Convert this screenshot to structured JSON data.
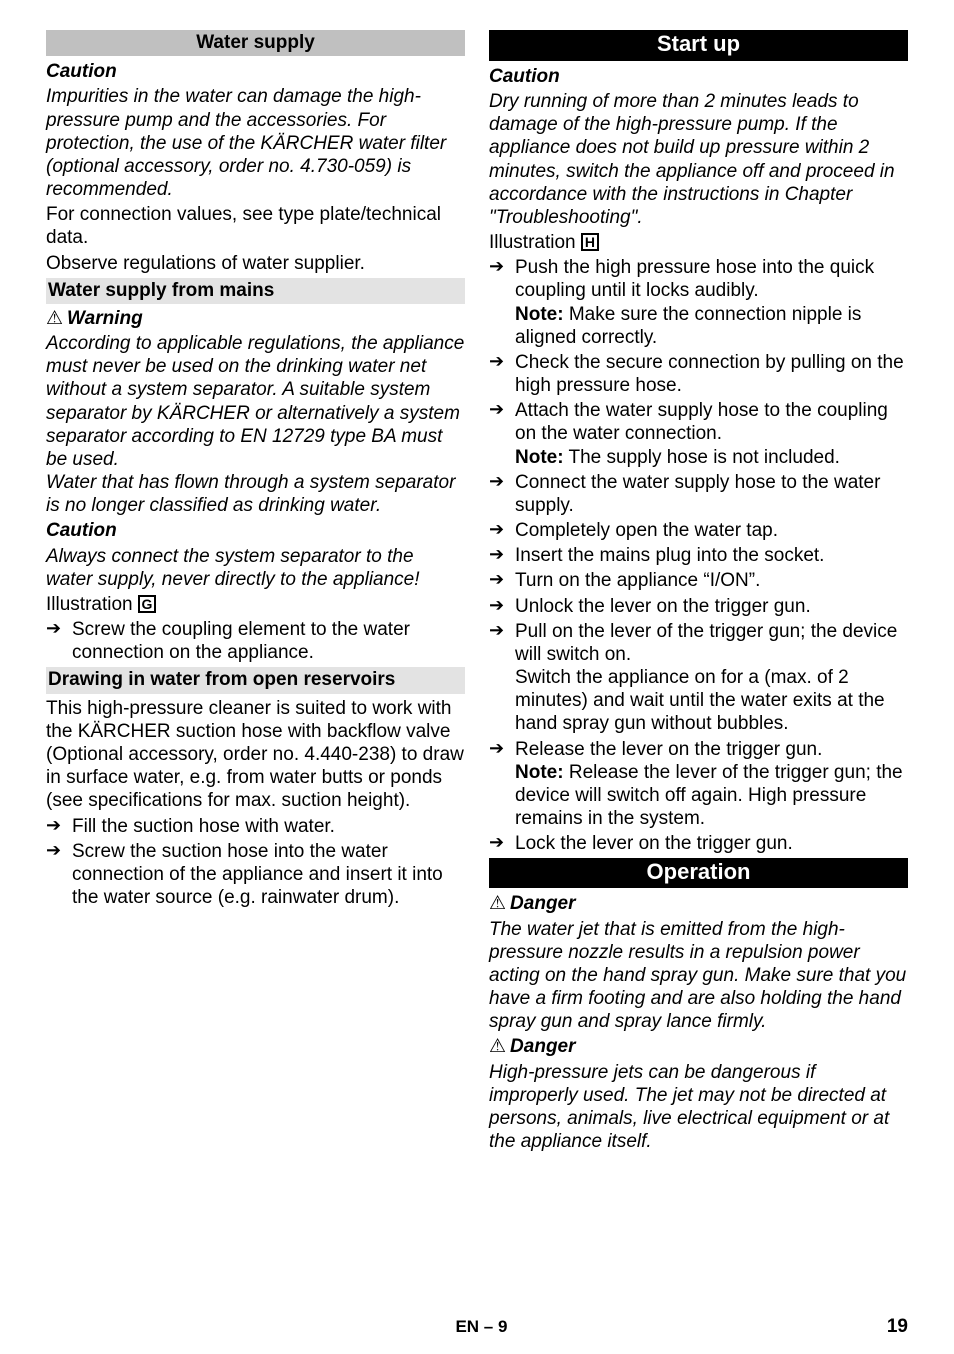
{
  "left": {
    "h_supply": "Water supply",
    "caution1": "Caution",
    "caution1_body": "Impurities in the water can damage the high-pressure pump and the accessories. For protection, the use of the KÄRCHER water filter (optional accessory, order no. 4.730-059) is recommended.",
    "p1": "For connection values, see type plate/technical data.",
    "p2": "Observe regulations of water supplier.",
    "h_mains": "Water supply from mains",
    "warn_sym": "⚠",
    "warning1_label": "Warning",
    "warning1_body": "According to applicable regulations, the appliance must never be used on the drinking water net without a system separator. A suitable system separator by KÄRCHER or alternatively a system separator according to EN 12729 type BA must be used.\nWater that has flown through a system separator is no longer classified as drinking water.",
    "caution2": "Caution",
    "caution2_body": "Always connect the system separator to the water supply, never directly to the appliance!",
    "illu_label": "Illustration",
    "illu_letter_g": "G",
    "li_screw_coupling": "Screw the coupling element to the water connection on the appliance.",
    "h_open": "Drawing in water from open reservoirs",
    "open_p1": "This high-pressure cleaner is suited to work with the KÄRCHER suction hose with backflow valve (Optional accessory, order no. 4.440-238) to draw in surface water, e.g. from water butts or ponds (see specifications for max. suction height).",
    "li_fill": "Fill the suction hose with water.",
    "li_screw_into": "Screw the suction hose into the water connection of the appliance and insert it into the water source (e.g. rainwater drum)."
  },
  "right": {
    "h_start": "Start up",
    "caution1": "Caution",
    "caution1_body": "Dry running of more than 2 minutes leads to damage of the high-pressure pump. If the appliance does not build up pressure within 2 minutes, switch the appliance off and proceed in accordance with the instructions in Chapter \"Troubleshooting\".",
    "illu_label": "Illustration",
    "illu_letter_h": "H",
    "li_push": "Push the high pressure hose into the quick coupling until it locks audibly.",
    "li_push_note_b": "Note:",
    "li_push_note": " Make sure the connection nipple is aligned correctly.",
    "li_check": "Check the secure connection by pulling on the high pressure hose.",
    "li_attach": "Attach the water supply hose to the coupling on the water connection.",
    "li_attach_note_b": "Note:",
    "li_attach_note": " The supply hose is not included.",
    "li_connect": "Connect the water supply hose to the water supply.",
    "li_open_tap": "Completely open the water tap.",
    "li_insert": "Insert the mains plug into the socket.",
    "li_turnon": "Turn on the appliance “I/ON”.",
    "li_unlock": "Unlock the lever on the trigger gun.",
    "li_pull": "Pull on the lever of the trigger gun; the device will switch on.",
    "li_pull_sub": "Switch the appliance on for a (max. of 2 minutes) and wait until the water exits at the hand spray gun without bubbles.",
    "li_release": "Release the lever on the trigger gun.",
    "li_release_note_b": "Note:",
    "li_release_note": " Release the lever of the trigger gun; the device will switch off again. High pressure remains in the system.",
    "li_lock": "Lock the lever on the trigger gun.",
    "h_operation": "Operation",
    "danger_sym": "⚠",
    "danger1_label": "Danger",
    "danger1_body": "The water jet that is emitted from the high-pressure nozzle results in a repulsion power acting on the hand spray gun. Make sure that you have a firm footing and are also holding the hand spray gun and spray lance firmly.",
    "danger2_label": "Danger",
    "danger2_body": "High-pressure jets can be dangerous if improperly used. The jet may not be directed at persons, animals, live electrical equipment or at the appliance itself."
  },
  "footer": {
    "center": "EN – 9",
    "page": "19"
  }
}
